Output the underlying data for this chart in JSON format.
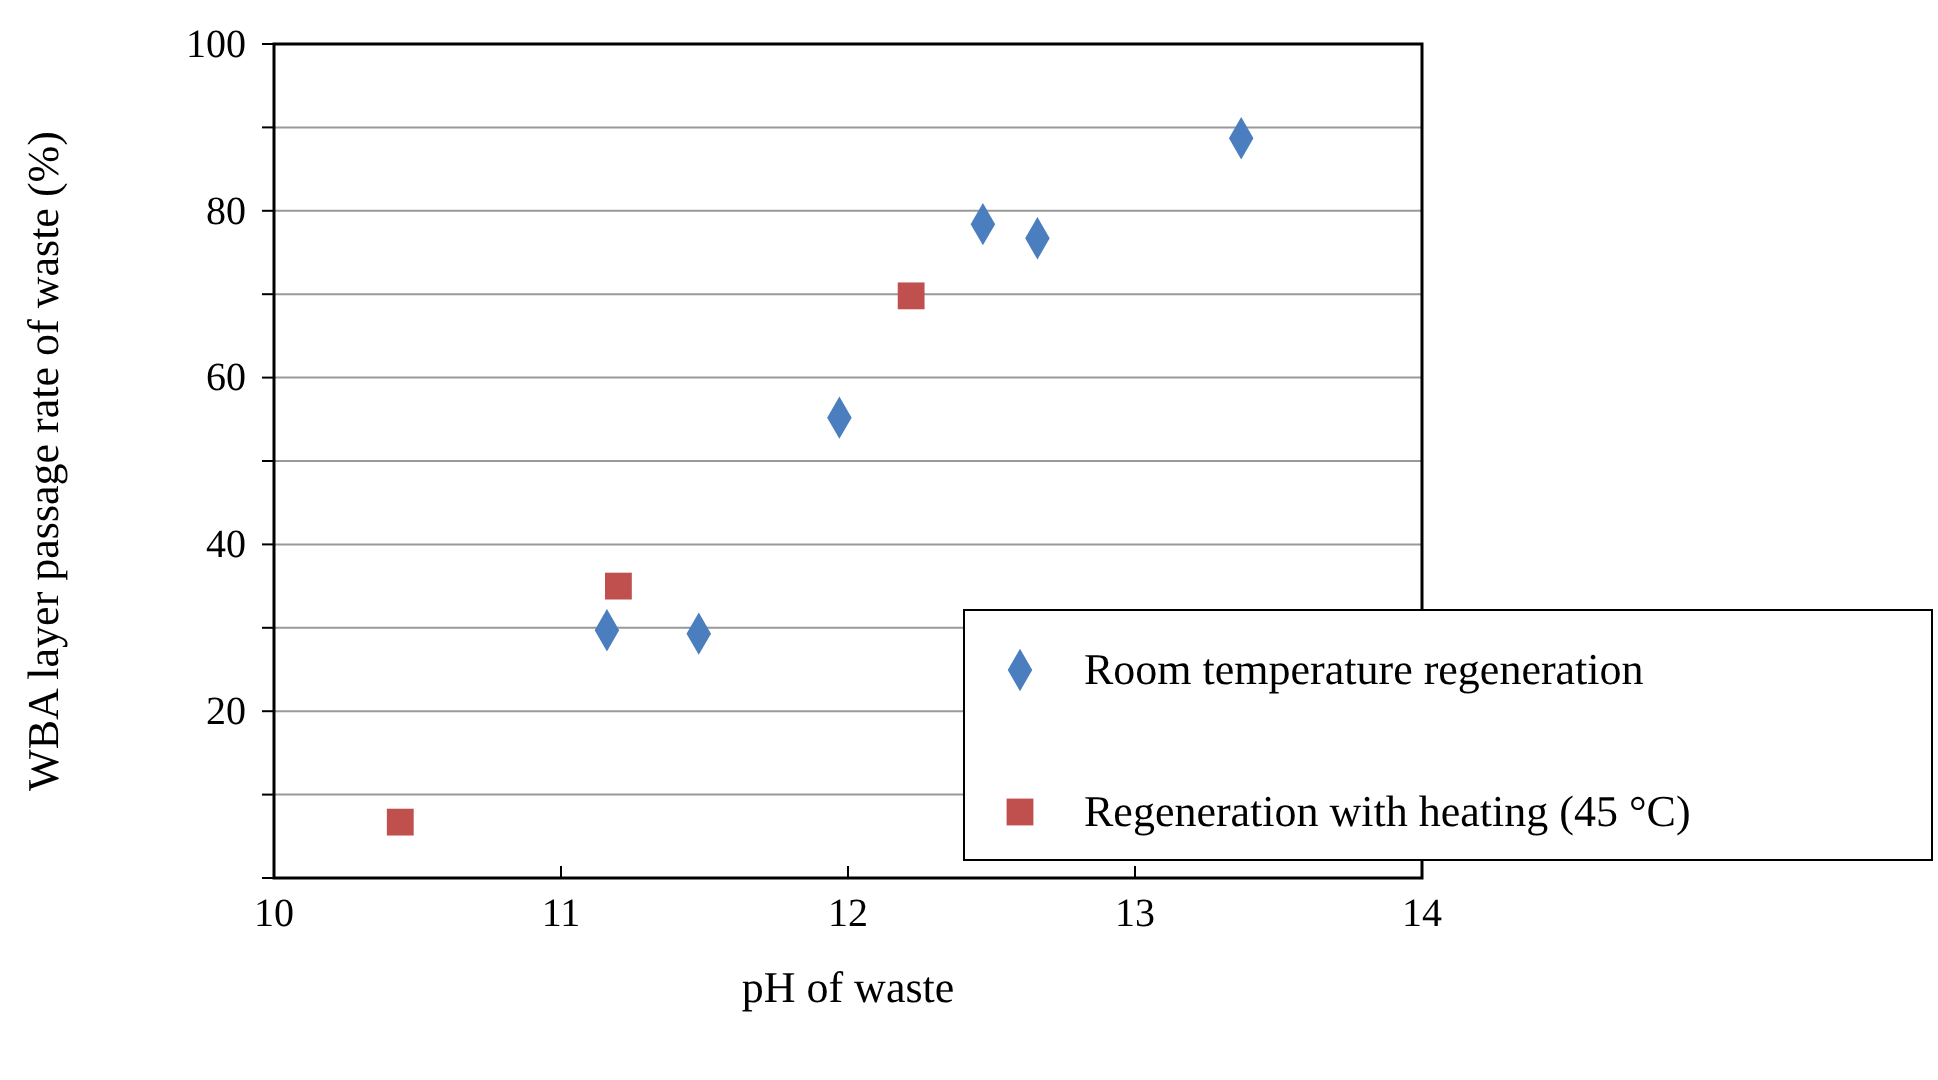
{
  "chart_data": {
    "type": "scatter",
    "xlabel": "pH of waste",
    "ylabel": "WBA layer passage rate of waste (%)",
    "xlim": [
      10,
      14
    ],
    "xticks": [
      10,
      11,
      12,
      13,
      14
    ],
    "ylim": [
      0,
      100
    ],
    "yticks": [
      {
        "value": 0,
        "label": null
      },
      {
        "value": 10,
        "label": null
      },
      20,
      {
        "value": 30,
        "label": null
      },
      40,
      {
        "value": 50,
        "label": null
      },
      60,
      {
        "value": 70,
        "label": null
      },
      80,
      {
        "value": 90,
        "label": null
      },
      100
    ],
    "grid": "y",
    "legend": "bottom right",
    "series": [
      {
        "name": "Room temperature regeneration",
        "color": "#4a7ebf",
        "marker": "diamond",
        "x": [
          11.16,
          11.48,
          11.97,
          12.47,
          12.66,
          13.37
        ],
        "values": [
          29.7,
          29.3,
          55.2,
          78.4,
          76.7,
          88.7
        ]
      },
      {
        "name": "Regeneration with heating (45 °C)",
        "color": "#c0504d",
        "marker": "square",
        "x": [
          10.44,
          11.2,
          12.22
        ],
        "values": [
          6.7,
          35,
          69.8
        ]
      }
    ]
  }
}
